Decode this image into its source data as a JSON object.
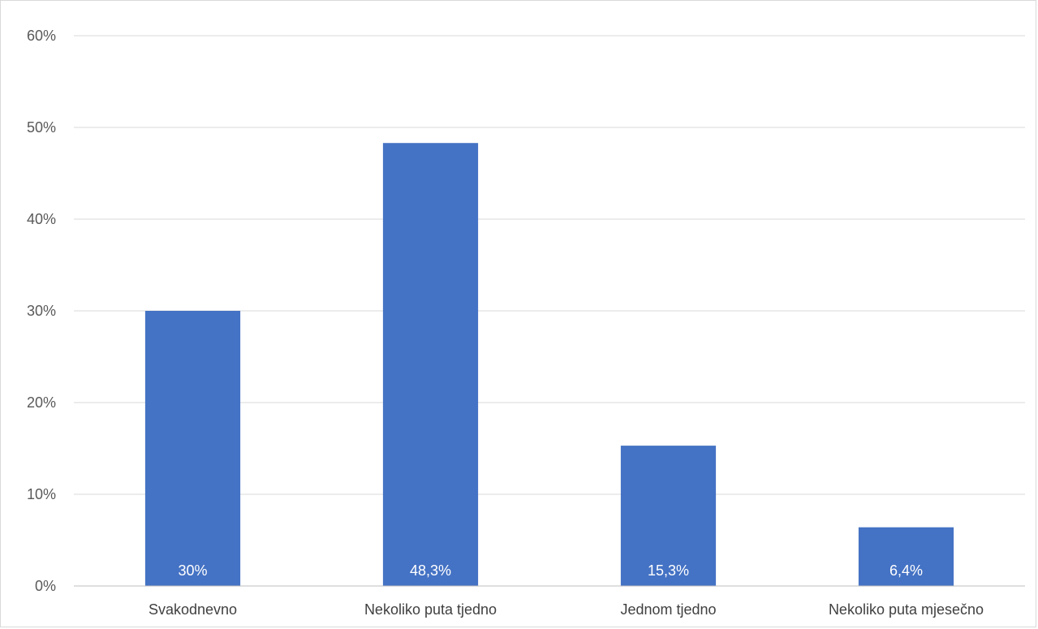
{
  "chart_data": {
    "type": "bar",
    "title": "",
    "xlabel": "",
    "ylabel": "",
    "categories": [
      "Svakodnevno",
      "Nekoliko puta tjedno",
      "Jednom tjedno",
      "Nekoliko puta mjesečno"
    ],
    "values": [
      30,
      48.3,
      15.3,
      6.4
    ],
    "data_labels": [
      "30%",
      "48,3%",
      "15,3%",
      "6,4%"
    ],
    "ylim": [
      0,
      60
    ],
    "yticks": [
      0,
      10,
      20,
      30,
      40,
      50,
      60
    ],
    "ytick_labels": [
      "0%",
      "10%",
      "20%",
      "30%",
      "40%",
      "50%",
      "60%"
    ],
    "grid": true,
    "legend": "none",
    "bar_color": "#4472C4"
  }
}
